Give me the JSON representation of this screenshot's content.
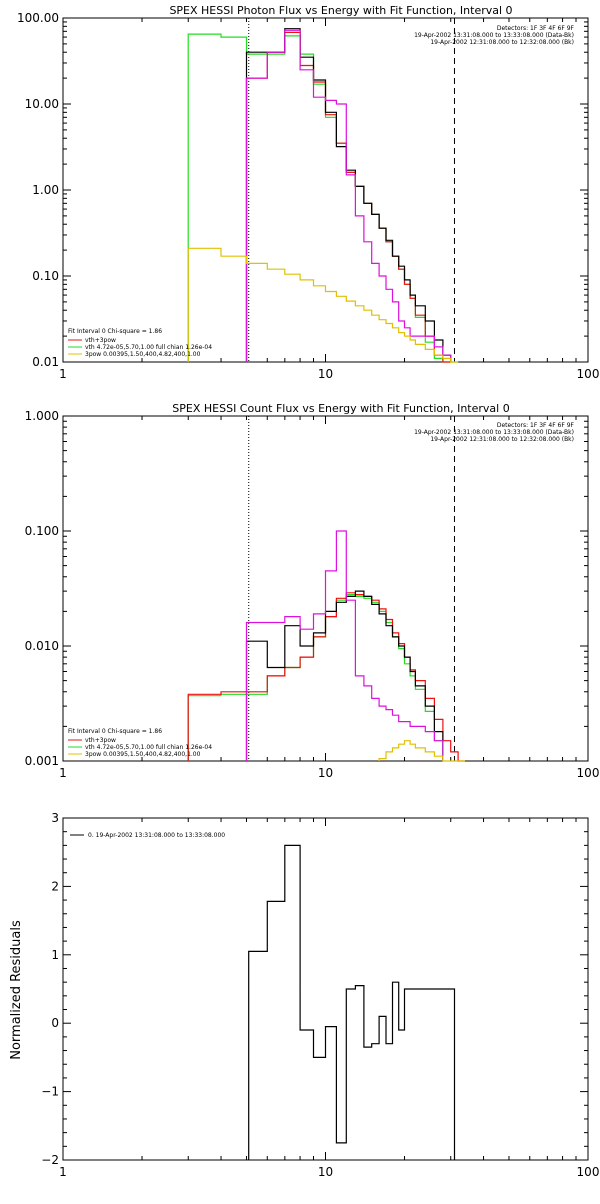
{
  "colors": {
    "black": "#000000",
    "red": "#ee1111",
    "magenta": "#dd11dd",
    "green": "#22dd22",
    "yellow": "#e0c000"
  },
  "chart_data": [
    {
      "id": "photon",
      "type": "line",
      "title": "SPEX HESSI Photon Flux vs Energy with Fit Function, Interval 0",
      "xscale": "log",
      "yscale": "log",
      "xlim": [
        1,
        100
      ],
      "ylim": [
        0.01,
        100
      ],
      "x_ticks": [
        {
          "v": 1,
          "label": "1"
        },
        {
          "v": 10,
          "label": "10"
        },
        {
          "v": 100,
          "label": "100"
        }
      ],
      "y_ticks": [
        {
          "v": 0.01,
          "label": "0.01"
        },
        {
          "v": 0.1,
          "label": "0.10"
        },
        {
          "v": 1,
          "label": "1.00"
        },
        {
          "v": 10,
          "label": "10.00"
        },
        {
          "v": 100,
          "label": "100.00"
        }
      ],
      "vlines": [
        {
          "x": 5.1,
          "style": "dotted"
        },
        {
          "x": 31,
          "style": "dashed"
        }
      ],
      "legend_top_right": [
        "Detectors: 1F 3F 4F 6F 9F",
        "19-Apr-2002 13:31:08.000 to 13:33:08.000 (Data-Bk)",
        "19-Apr-2002 12:31:08.000 to 12:32:08.000 (Bk)"
      ],
      "legend_bottom_left": [
        {
          "text": "Fit Interval 0   Chi-square = 1.86",
          "color": ""
        },
        {
          "text": "vth+3pow",
          "color": "red"
        },
        {
          "text": "vth 4.72e-05,5.70,1.00  full chian 1.26e-04",
          "color": "green"
        },
        {
          "text": "3pow 0.00395,1.50,400,4.82,400,1.00",
          "color": "yellow"
        }
      ],
      "edges": [
        3,
        4,
        5,
        6,
        7,
        8,
        9,
        10,
        11,
        12,
        13,
        14,
        15,
        16,
        17,
        18,
        19,
        20,
        21,
        22,
        24,
        26,
        28,
        30,
        32
      ],
      "series": [
        {
          "color": "green",
          "values": [
            65,
            60,
            38,
            38,
            62,
            38,
            17,
            7,
            3.5,
            1.6,
            1.1,
            0.7,
            0.52,
            0.36,
            0.25,
            0.17,
            0.12,
            0.08,
            0.055,
            0.033,
            0.017,
            0.011,
            0.01,
            0.01
          ]
        },
        {
          "color": "red",
          "values": [
            null,
            null,
            20,
            40,
            68,
            28,
            18,
            7.5,
            3.5,
            1.6,
            1.1,
            0.7,
            0.52,
            0.36,
            0.25,
            0.17,
            0.12,
            0.08,
            0.055,
            0.035,
            0.02,
            0.012,
            0.01,
            null
          ]
        },
        {
          "color": "black",
          "values": [
            null,
            null,
            40,
            40,
            75,
            35,
            19,
            8,
            3.2,
            1.7,
            1.1,
            0.7,
            0.52,
            0.36,
            0.26,
            0.17,
            0.13,
            0.09,
            0.06,
            0.045,
            0.03,
            0.018,
            0.012,
            null
          ]
        },
        {
          "color": "magenta",
          "values": [
            null,
            null,
            20,
            40,
            72,
            25,
            12,
            11,
            10,
            1.5,
            0.5,
            0.25,
            0.14,
            0.1,
            0.07,
            0.05,
            0.03,
            0.025,
            0.02,
            0.02,
            0.02,
            0.015,
            0.012,
            null
          ]
        },
        {
          "color": "yellow",
          "values": [
            0.21,
            0.17,
            0.14,
            0.12,
            0.105,
            0.09,
            0.077,
            0.066,
            0.058,
            0.051,
            0.045,
            0.04,
            0.035,
            0.031,
            0.028,
            0.025,
            0.022,
            0.02,
            0.018,
            0.016,
            0.014,
            0.012,
            0.011,
            0.01
          ]
        }
      ]
    },
    {
      "id": "count",
      "type": "line",
      "title": "SPEX HESSI Count Flux vs Energy with Fit Function, Interval 0",
      "xscale": "log",
      "yscale": "log",
      "xlim": [
        1,
        100
      ],
      "ylim": [
        0.001,
        1
      ],
      "x_ticks": [
        {
          "v": 1,
          "label": "1"
        },
        {
          "v": 10,
          "label": "10"
        },
        {
          "v": 100,
          "label": "100"
        }
      ],
      "y_ticks": [
        {
          "v": 0.001,
          "label": "0.001"
        },
        {
          "v": 0.01,
          "label": "0.010"
        },
        {
          "v": 0.1,
          "label": "0.100"
        },
        {
          "v": 1,
          "label": "1.000"
        }
      ],
      "vlines": [
        {
          "x": 5.1,
          "style": "dotted"
        },
        {
          "x": 31,
          "style": "dashed"
        }
      ],
      "legend_top_right": [
        "Detectors: 1F 3F 4F 6F 9F",
        "19-Apr-2002 13:31:08.000 to 13:33:08.000 (Data-Bk)",
        "19-Apr-2002 12:31:08.000 to 12:32:08.000 (Bk)"
      ],
      "legend_bottom_left": [
        {
          "text": "Fit Interval 0   Chi-square = 1.86",
          "color": ""
        },
        {
          "text": "vth+3pow",
          "color": "red"
        },
        {
          "text": "vth 4.72e-05,5.70,1.00  full chian 1.26e-04",
          "color": "green"
        },
        {
          "text": "3pow 0.00395,1.50,400,4.82,400,1.00",
          "color": "yellow"
        }
      ],
      "edges": [
        3,
        4,
        5,
        6,
        7,
        8,
        9,
        10,
        11,
        12,
        13,
        14,
        15,
        16,
        17,
        18,
        19,
        20,
        21,
        22,
        24,
        26,
        28,
        30,
        32,
        34,
        36
      ],
      "series": [
        {
          "color": "green",
          "values": [
            0.0037,
            0.0038,
            0.0038,
            0.0055,
            0.0065,
            0.008,
            0.012,
            0.018,
            0.025,
            0.028,
            0.027,
            0.026,
            0.024,
            0.02,
            0.016,
            0.012,
            0.0095,
            0.007,
            0.0055,
            0.0042,
            0.0027,
            0.0015,
            null,
            null,
            null,
            null
          ]
        },
        {
          "color": "red",
          "values": [
            0.0038,
            0.004,
            0.004,
            0.0055,
            0.0065,
            0.008,
            0.012,
            0.018,
            0.026,
            0.029,
            0.028,
            0.027,
            0.025,
            0.021,
            0.017,
            0.013,
            0.0105,
            0.008,
            0.0062,
            0.005,
            0.0035,
            0.0023,
            0.0015,
            0.0012,
            0.001,
            null
          ]
        },
        {
          "color": "black",
          "values": [
            null,
            null,
            0.011,
            0.0065,
            0.015,
            0.01,
            0.013,
            0.02,
            0.024,
            0.027,
            0.03,
            0.027,
            0.023,
            0.019,
            0.015,
            0.012,
            0.01,
            0.008,
            0.006,
            0.0045,
            0.003,
            0.0018,
            null,
            null,
            null,
            null
          ]
        },
        {
          "color": "magenta",
          "values": [
            null,
            null,
            0.016,
            0.016,
            0.018,
            0.014,
            0.019,
            0.045,
            0.1,
            0.025,
            0.0055,
            0.0045,
            0.0035,
            0.003,
            0.0028,
            0.0025,
            0.0022,
            0.0022,
            0.002,
            0.002,
            0.0018,
            0.0015,
            null,
            null,
            null,
            null
          ]
        },
        {
          "color": "yellow",
          "values": [
            null,
            null,
            null,
            null,
            null,
            null,
            null,
            null,
            null,
            null,
            null,
            null,
            null,
            0.00105,
            0.0012,
            0.0013,
            0.0014,
            0.0015,
            0.0014,
            0.0013,
            0.0012,
            0.0011,
            0.001,
            0.001,
            0.001,
            null
          ]
        }
      ]
    },
    {
      "id": "resid",
      "type": "line",
      "title": "",
      "ylabel": "Normalized Residuals",
      "xscale": "log",
      "yscale": "linear",
      "xlim": [
        1,
        100
      ],
      "ylim": [
        -2,
        3
      ],
      "x_ticks": [
        {
          "v": 1,
          "label": "1"
        },
        {
          "v": 10,
          "label": "10"
        },
        {
          "v": 100,
          "label": "100"
        }
      ],
      "y_ticks": [
        {
          "v": -2,
          "label": "−2"
        },
        {
          "v": -1,
          "label": "−1"
        },
        {
          "v": 0,
          "label": "0"
        },
        {
          "v": 1,
          "label": "1"
        },
        {
          "v": 2,
          "label": "2"
        },
        {
          "v": 3,
          "label": "3"
        }
      ],
      "legend_top_left": "0. 19-Apr-2002 13:31:08.000 to 13:33:08.000",
      "edges": [
        5.1,
        6,
        7,
        8,
        9,
        10,
        11,
        12,
        13,
        14,
        15,
        16,
        17,
        18,
        19,
        20,
        21,
        22,
        24,
        26,
        28,
        30,
        31
      ],
      "series": [
        {
          "color": "black",
          "values": [
            1.05,
            1.78,
            2.6,
            -0.1,
            -0.5,
            -0.05,
            -1.75,
            0.5,
            0.55,
            -0.35,
            -0.3,
            0.1,
            -0.3,
            0.6,
            -0.1,
            0.5,
            0.5,
            0.5,
            0.5,
            0.5,
            0.5,
            0.5
          ]
        }
      ]
    }
  ]
}
